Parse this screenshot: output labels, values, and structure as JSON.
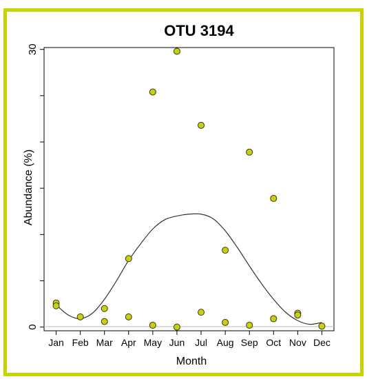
{
  "chart_data": {
    "type": "scatter",
    "title": "OTU 3194",
    "xlabel": "Month",
    "ylabel": "Abundance (%)",
    "categories": [
      "Jan",
      "Feb",
      "Mar",
      "Apr",
      "May",
      "Jun",
      "Jul",
      "Aug",
      "Sep",
      "Oct",
      "Nov",
      "Dec"
    ],
    "yticks": [
      0,
      30
    ],
    "ylim": [
      -0.4,
      30.2
    ],
    "grid": false,
    "point_color": "#c7cf1a",
    "points": [
      {
        "x": "Jan",
        "y": 2.6
      },
      {
        "x": "Jan",
        "y": 2.3
      },
      {
        "x": "Feb",
        "y": 1.1
      },
      {
        "x": "Mar",
        "y": 2.0
      },
      {
        "x": "Mar",
        "y": 0.6
      },
      {
        "x": "Apr",
        "y": 7.4
      },
      {
        "x": "Apr",
        "y": 1.1
      },
      {
        "x": "May",
        "y": 25.4
      },
      {
        "x": "May",
        "y": 0.2
      },
      {
        "x": "Jun",
        "y": 29.8
      },
      {
        "x": "Jun",
        "y": 0.0
      },
      {
        "x": "Jul",
        "y": 21.8
      },
      {
        "x": "Jul",
        "y": 1.6
      },
      {
        "x": "Aug",
        "y": 8.3
      },
      {
        "x": "Aug",
        "y": 0.5
      },
      {
        "x": "Sep",
        "y": 18.9
      },
      {
        "x": "Sep",
        "y": 0.2
      },
      {
        "x": "Oct",
        "y": 13.9
      },
      {
        "x": "Oct",
        "y": 0.9
      },
      {
        "x": "Nov",
        "y": 1.5
      },
      {
        "x": "Nov",
        "y": 1.3
      },
      {
        "x": "Dec",
        "y": 0.1
      }
    ],
    "fit_curve": {
      "type": "sinusoidal",
      "x": [
        1,
        1.5,
        2,
        2.5,
        3,
        3.5,
        4,
        4.5,
        5,
        5.5,
        6,
        6.5,
        7,
        7.5,
        8,
        8.5,
        9,
        9.5,
        10,
        10.5,
        11,
        11.5,
        12
      ],
      "y": [
        2.4,
        1.3,
        0.9,
        1.5,
        3.0,
        5.0,
        7.2,
        9.0,
        10.6,
        11.6,
        12.0,
        12.2,
        12.2,
        11.7,
        10.4,
        8.6,
        6.6,
        4.7,
        3.0,
        1.6,
        0.7,
        0.3,
        0.5
      ]
    }
  }
}
